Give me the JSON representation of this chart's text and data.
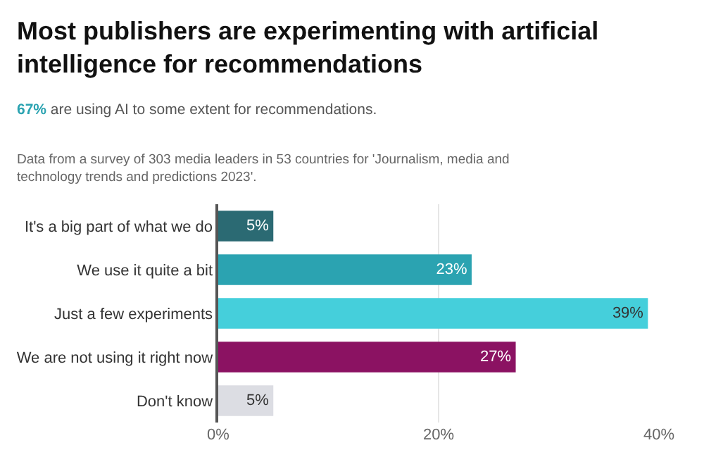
{
  "chart_data": {
    "type": "bar",
    "orientation": "horizontal",
    "title": "Most publishers are experimenting with artificial intelligence for recommendations",
    "subtitle": "67% are using AI to some extent for recommendations.",
    "annotations": [
      "Data from a survey of 303 media leaders in 53 countries for 'Journalism, media and technology trends and predictions 2023'."
    ],
    "categories": [
      "It's a big part of what we do",
      "We use it quite a bit",
      "Just a few experiments",
      "We are not using it right now",
      "Don't know"
    ],
    "values": [
      5,
      23,
      39,
      27,
      5
    ],
    "colors": [
      "#2b6a73",
      "#2ba3b1",
      "#45cfdb",
      "#8b1262",
      "#dcdde3"
    ],
    "value_labels": [
      "5%",
      "23%",
      "39%",
      "27%",
      "5%"
    ],
    "xlim": [
      0,
      40
    ],
    "xticks": [
      {
        "value": 0,
        "label": "0%"
      },
      {
        "value": 20,
        "label": "20%"
      },
      {
        "value": 40,
        "label": "40%"
      }
    ],
    "grid": "x",
    "legend": false
  }
}
